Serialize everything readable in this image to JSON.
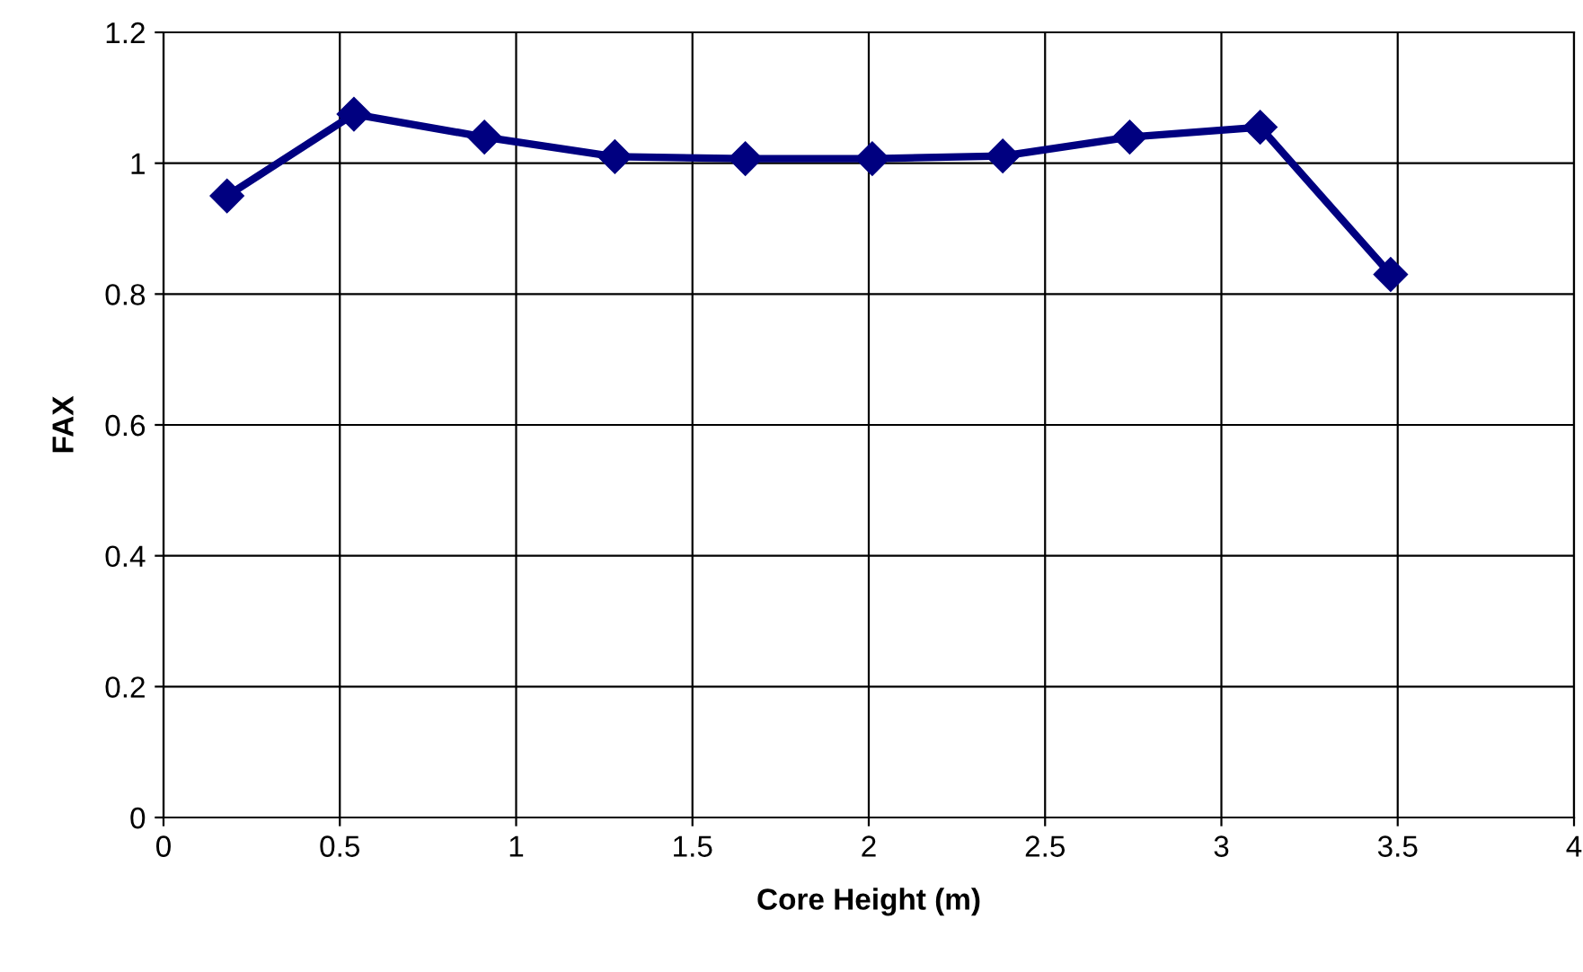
{
  "chart_data": {
    "type": "line",
    "xlabel": "Core Height (m)",
    "ylabel": "FAX",
    "x": [
      0.18,
      0.54,
      0.91,
      1.28,
      1.65,
      2.01,
      2.38,
      2.74,
      3.11,
      3.48
    ],
    "series": [
      {
        "color": "#000080",
        "values": [
          0.95,
          1.075,
          1.04,
          1.01,
          1.007,
          1.007,
          1.011,
          1.04,
          1.055,
          0.83
        ]
      }
    ],
    "xlim": [
      0,
      4
    ],
    "xticks": [
      0,
      0.5,
      1,
      1.5,
      2,
      2.5,
      3,
      3.5,
      4
    ],
    "ylim": [
      0,
      1.2
    ],
    "yticks": [
      0,
      0.2,
      0.4,
      0.6,
      0.8,
      1,
      1.2
    ],
    "grid": true,
    "marker": "diamond",
    "line_style": "solid"
  }
}
